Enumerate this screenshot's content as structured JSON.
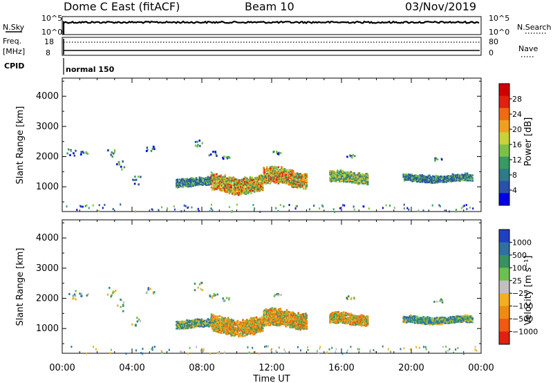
{
  "header": {
    "station": "Dome C East (fitACF)",
    "beam": "Beam 10",
    "date": "03/Nov/2019"
  },
  "top_panels": {
    "nsky_label": "N.Sky",
    "nsky_ticks": [
      "10^5",
      "10^0"
    ],
    "nsearch_label": "N.Search",
    "nsearch_ticks": [
      "10^5",
      "10^0"
    ],
    "freq_label": "Freq.",
    "freq_unit": "[MHz]",
    "freq_ticks": [
      "18",
      "8"
    ],
    "nave_label": "Nave",
    "nave_ticks": [
      "80",
      "0"
    ],
    "cpid_label": "CPID",
    "cpid_value": "normal 150"
  },
  "chart_data": [
    {
      "type": "heatmap",
      "name": "power",
      "ylabel": "Slant Range [km]",
      "yticks": [
        1000,
        2000,
        3000,
        4000
      ],
      "ylim": [
        180,
        4600
      ],
      "xlim": [
        0,
        24
      ],
      "colorbar": {
        "label": "Power [dB]",
        "ticks": [
          "4",
          "8",
          "12",
          "16",
          "20",
          "24",
          "28"
        ],
        "range": [
          0,
          32
        ],
        "colors": [
          "#0000e6",
          "#2b50a8",
          "#2f7a8a",
          "#3a9960",
          "#7cc04a",
          "#c8d23a",
          "#f0a020",
          "#f06a10",
          "#e02010",
          "#d00000"
        ]
      },
      "regions": [
        {
          "t0": 6.5,
          "t1": 8.5,
          "r0": 1000,
          "r1": 1300,
          "level": "low"
        },
        {
          "t0": 8.5,
          "t1": 11.5,
          "r0": 800,
          "r1": 1400,
          "level": "high"
        },
        {
          "t0": 11.5,
          "t1": 14.0,
          "r0": 1000,
          "r1": 1600,
          "level": "high"
        },
        {
          "t0": 15.3,
          "t1": 17.5,
          "r0": 1100,
          "r1": 1500,
          "level": "mid"
        },
        {
          "t0": 19.5,
          "t1": 23.5,
          "r0": 1150,
          "r1": 1400,
          "level": "low"
        }
      ]
    },
    {
      "type": "heatmap",
      "name": "velocity",
      "ylabel": "Slant Range [km]",
      "xlabel": "Time UT",
      "yticks": [
        1000,
        2000,
        3000,
        4000
      ],
      "ylim": [
        180,
        4600
      ],
      "xlim": [
        0,
        24
      ],
      "xticks": [
        "00:00",
        "04:00",
        "08:00",
        "12:00",
        "16:00",
        "20:00",
        "00:00"
      ],
      "colorbar": {
        "label": "Velocity [m s⁻¹]",
        "ticks": [
          "1000",
          "500",
          "100",
          "25",
          "−25",
          "−100",
          "−500",
          "−1000"
        ],
        "colors": [
          "#2040c0",
          "#2f70a0",
          "#3a9060",
          "#6cc050",
          "#c0c0c0",
          "#f0b020",
          "#f08a10",
          "#f05a10",
          "#e02010"
        ]
      },
      "regions": [
        {
          "t0": 6.5,
          "t1": 8.5,
          "r0": 1000,
          "r1": 1300,
          "level": "mixed"
        },
        {
          "t0": 8.5,
          "t1": 11.5,
          "r0": 800,
          "r1": 1400,
          "level": "negative"
        },
        {
          "t0": 11.5,
          "t1": 14.0,
          "r0": 1000,
          "r1": 1600,
          "level": "negative"
        },
        {
          "t0": 15.3,
          "t1": 17.5,
          "r0": 1100,
          "r1": 1500,
          "level": "negative"
        },
        {
          "t0": 19.5,
          "t1": 23.5,
          "r0": 1150,
          "r1": 1400,
          "level": "mixed"
        }
      ]
    }
  ]
}
